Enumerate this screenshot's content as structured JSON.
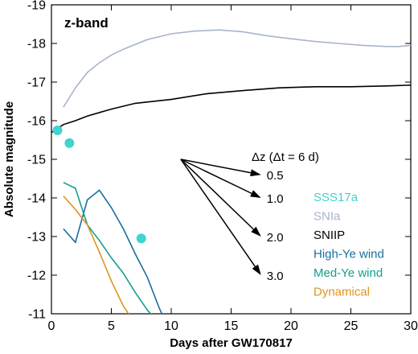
{
  "chart_data": {
    "type": "line",
    "panel_label": "z-band",
    "xlabel": "Days after GW170817",
    "ylabel": "Absolute magnitude",
    "xlim": [
      0,
      30
    ],
    "ylim": [
      -11,
      -19
    ],
    "y_inverted": true,
    "x_ticks": [
      0,
      5,
      10,
      15,
      20,
      25,
      30
    ],
    "y_ticks": [
      -19,
      -18,
      -17,
      -16,
      -15,
      -14,
      -13,
      -12,
      -11
    ],
    "grid": false,
    "legend_position": "right",
    "series": [
      {
        "name": "SNIa",
        "color": "#a8b5c8",
        "kind": "line",
        "points": [
          [
            1,
            -16.35
          ],
          [
            2,
            -16.85
          ],
          [
            3,
            -17.25
          ],
          [
            4,
            -17.5
          ],
          [
            5,
            -17.7
          ],
          [
            6,
            -17.85
          ],
          [
            8,
            -18.1
          ],
          [
            10,
            -18.25
          ],
          [
            12,
            -18.32
          ],
          [
            14,
            -18.35
          ],
          [
            16,
            -18.3
          ],
          [
            18,
            -18.2
          ],
          [
            20,
            -18.12
          ],
          [
            22,
            -18.05
          ],
          [
            24,
            -18.0
          ],
          [
            26,
            -17.95
          ],
          [
            28,
            -17.92
          ],
          [
            29,
            -17.92
          ],
          [
            30,
            -17.95
          ]
        ]
      },
      {
        "name": "SNIIP",
        "color": "#000000",
        "kind": "line",
        "points": [
          [
            0,
            -15.7
          ],
          [
            1,
            -15.9
          ],
          [
            2,
            -16.0
          ],
          [
            3,
            -16.12
          ],
          [
            5,
            -16.3
          ],
          [
            7,
            -16.45
          ],
          [
            10,
            -16.55
          ],
          [
            13,
            -16.7
          ],
          [
            16,
            -16.78
          ],
          [
            19,
            -16.85
          ],
          [
            22,
            -16.88
          ],
          [
            25,
            -16.88
          ],
          [
            28,
            -16.9
          ],
          [
            30,
            -16.92
          ]
        ]
      },
      {
        "name": "High-Ye wind",
        "color": "#1a6e9e",
        "kind": "line",
        "points": [
          [
            1,
            -13.2
          ],
          [
            2,
            -12.85
          ],
          [
            3,
            -13.95
          ],
          [
            4,
            -14.2
          ],
          [
            5,
            -13.75
          ],
          [
            6,
            -13.2
          ],
          [
            7,
            -12.55
          ],
          [
            8,
            -11.95
          ],
          [
            9,
            -11.15
          ],
          [
            9.5,
            -10.8
          ]
        ]
      },
      {
        "name": "Med-Ye wind",
        "color": "#12a08c",
        "kind": "line",
        "points": [
          [
            1,
            -14.4
          ],
          [
            2,
            -14.25
          ],
          [
            3,
            -13.3
          ],
          [
            4,
            -12.9
          ],
          [
            5,
            -12.45
          ],
          [
            6,
            -12.05
          ],
          [
            7,
            -11.55
          ],
          [
            8,
            -11.1
          ],
          [
            9,
            -10.75
          ]
        ]
      },
      {
        "name": "Dynamical",
        "color": "#e0941e",
        "kind": "line",
        "points": [
          [
            1,
            -14.05
          ],
          [
            2,
            -13.7
          ],
          [
            3,
            -13.3
          ],
          [
            4,
            -12.6
          ],
          [
            5,
            -11.85
          ],
          [
            6,
            -11.2
          ],
          [
            7,
            -10.75
          ]
        ]
      },
      {
        "name": "SSS17a",
        "color": "#40d4d0",
        "kind": "scatter",
        "points": [
          [
            0.5,
            -15.75
          ],
          [
            1.5,
            -15.42
          ],
          [
            7.5,
            -12.95
          ]
        ]
      }
    ],
    "annotation": {
      "title": "Δz (Δt = 6 d)",
      "origin": [
        10.8,
        -15.0
      ],
      "arrows": [
        {
          "label": "0.5",
          "end": [
            17.5,
            -14.6
          ]
        },
        {
          "label": "1.0",
          "end": [
            17.5,
            -14.0
          ]
        },
        {
          "label": "2.0",
          "end": [
            17.5,
            -13.0
          ]
        },
        {
          "label": "3.0",
          "end": [
            17.5,
            -12.0
          ]
        }
      ]
    }
  }
}
